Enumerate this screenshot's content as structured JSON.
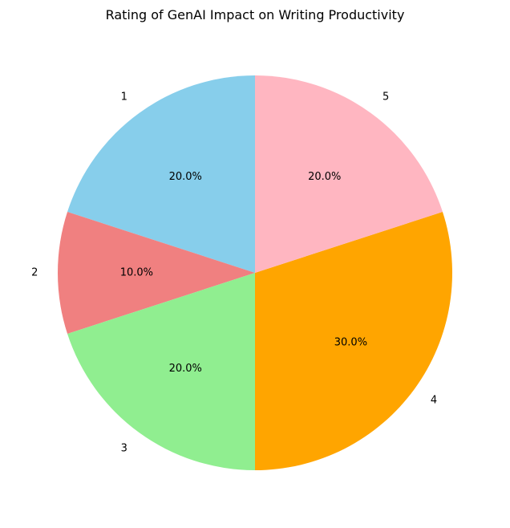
{
  "chart_data": {
    "type": "pie",
    "title": "Rating of GenAI Impact on Writing Productivity",
    "labels": [
      "1",
      "2",
      "3",
      "4",
      "5"
    ],
    "values": [
      20.0,
      10.0,
      20.0,
      30.0,
      20.0
    ],
    "percent_labels": [
      "20.0%",
      "10.0%",
      "20.0%",
      "30.0%",
      "20.0%"
    ],
    "colors": [
      "#87ceeb",
      "#f08080",
      "#90ee90",
      "#ffa500",
      "#ffb6c1"
    ],
    "start_angle_deg": 90,
    "direction": "counterclockwise",
    "legend": "none"
  }
}
